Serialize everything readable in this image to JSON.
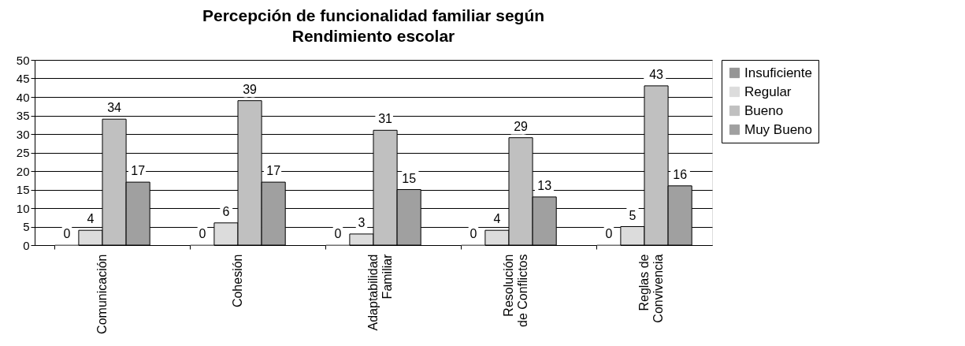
{
  "chart_data": {
    "type": "bar",
    "title": "Percepción de funcionalidad familiar según\nRendimiento escolar",
    "categories": [
      "Comunicación",
      "Cohesión",
      "Adaptabilidad\nFamiliar",
      "Resolución\nde Conflictos",
      "Reglas de\nConvivencia"
    ],
    "series": [
      {
        "name": "Insuficiente",
        "color": "#969696",
        "values": [
          0,
          0,
          0,
          0,
          0
        ]
      },
      {
        "name": "Regular",
        "color": "#dcdcdc",
        "values": [
          4,
          6,
          3,
          4,
          5
        ]
      },
      {
        "name": "Bueno",
        "color": "#c0c0c0",
        "values": [
          34,
          39,
          31,
          29,
          43
        ]
      },
      {
        "name": "Muy Bueno",
        "color": "#a0a0a0",
        "values": [
          17,
          17,
          15,
          13,
          16
        ]
      }
    ],
    "ylim": [
      0,
      50
    ],
    "yticks": [
      0,
      5,
      10,
      15,
      20,
      25,
      30,
      35,
      40,
      45,
      50
    ],
    "grid": "y",
    "legend": "right",
    "data_labels": true
  }
}
